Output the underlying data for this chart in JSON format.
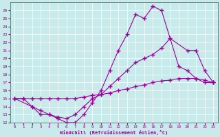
{
  "xlabel": "Windchill (Refroidissement éolien,°C)",
  "xlim": [
    -0.5,
    23.5
  ],
  "ylim": [
    12,
    27
  ],
  "xticks": [
    0,
    1,
    2,
    3,
    4,
    5,
    6,
    7,
    8,
    9,
    10,
    11,
    12,
    13,
    14,
    15,
    16,
    17,
    18,
    19,
    20,
    21,
    22,
    23
  ],
  "yticks": [
    12,
    13,
    14,
    15,
    16,
    17,
    18,
    19,
    20,
    21,
    22,
    23,
    24,
    25,
    26
  ],
  "bg_color": "#c8eaea",
  "line_color": "#990099",
  "line1_x": [
    0,
    1,
    2,
    3,
    4,
    5,
    6,
    7,
    8,
    9,
    10,
    11,
    12,
    13,
    14,
    15,
    16,
    17,
    18,
    19,
    20,
    21,
    22,
    23
  ],
  "line1_y": [
    15,
    15,
    14,
    13,
    13,
    12.5,
    12,
    12,
    13,
    14.5,
    16,
    18.5,
    21,
    23,
    25.5,
    25,
    26.5,
    26,
    22.5,
    19,
    18.5,
    17.5,
    17,
    17
  ],
  "line2_x": [
    0,
    2,
    3,
    4,
    5,
    6,
    7,
    8,
    9,
    10,
    11,
    12,
    13,
    14,
    15,
    16,
    17,
    18,
    20,
    21,
    22,
    23
  ],
  "line2_y": [
    15,
    14,
    13.5,
    13,
    12.7,
    12.5,
    13,
    14,
    15,
    15.5,
    16.5,
    17.5,
    18.5,
    19.5,
    20,
    20.5,
    21.3,
    22.5,
    21,
    21,
    18.5,
    17
  ],
  "line3_x": [
    0,
    1,
    2,
    3,
    4,
    5,
    6,
    7,
    8,
    9,
    10,
    11,
    12,
    13,
    14,
    15,
    16,
    17,
    18,
    19,
    20,
    21,
    22,
    23
  ],
  "line3_y": [
    15,
    15,
    15,
    15,
    15,
    15,
    15,
    15,
    15.2,
    15.4,
    15.5,
    15.7,
    16,
    16.2,
    16.5,
    16.7,
    17,
    17.2,
    17.3,
    17.5,
    17.5,
    17.5,
    17.3,
    17
  ]
}
